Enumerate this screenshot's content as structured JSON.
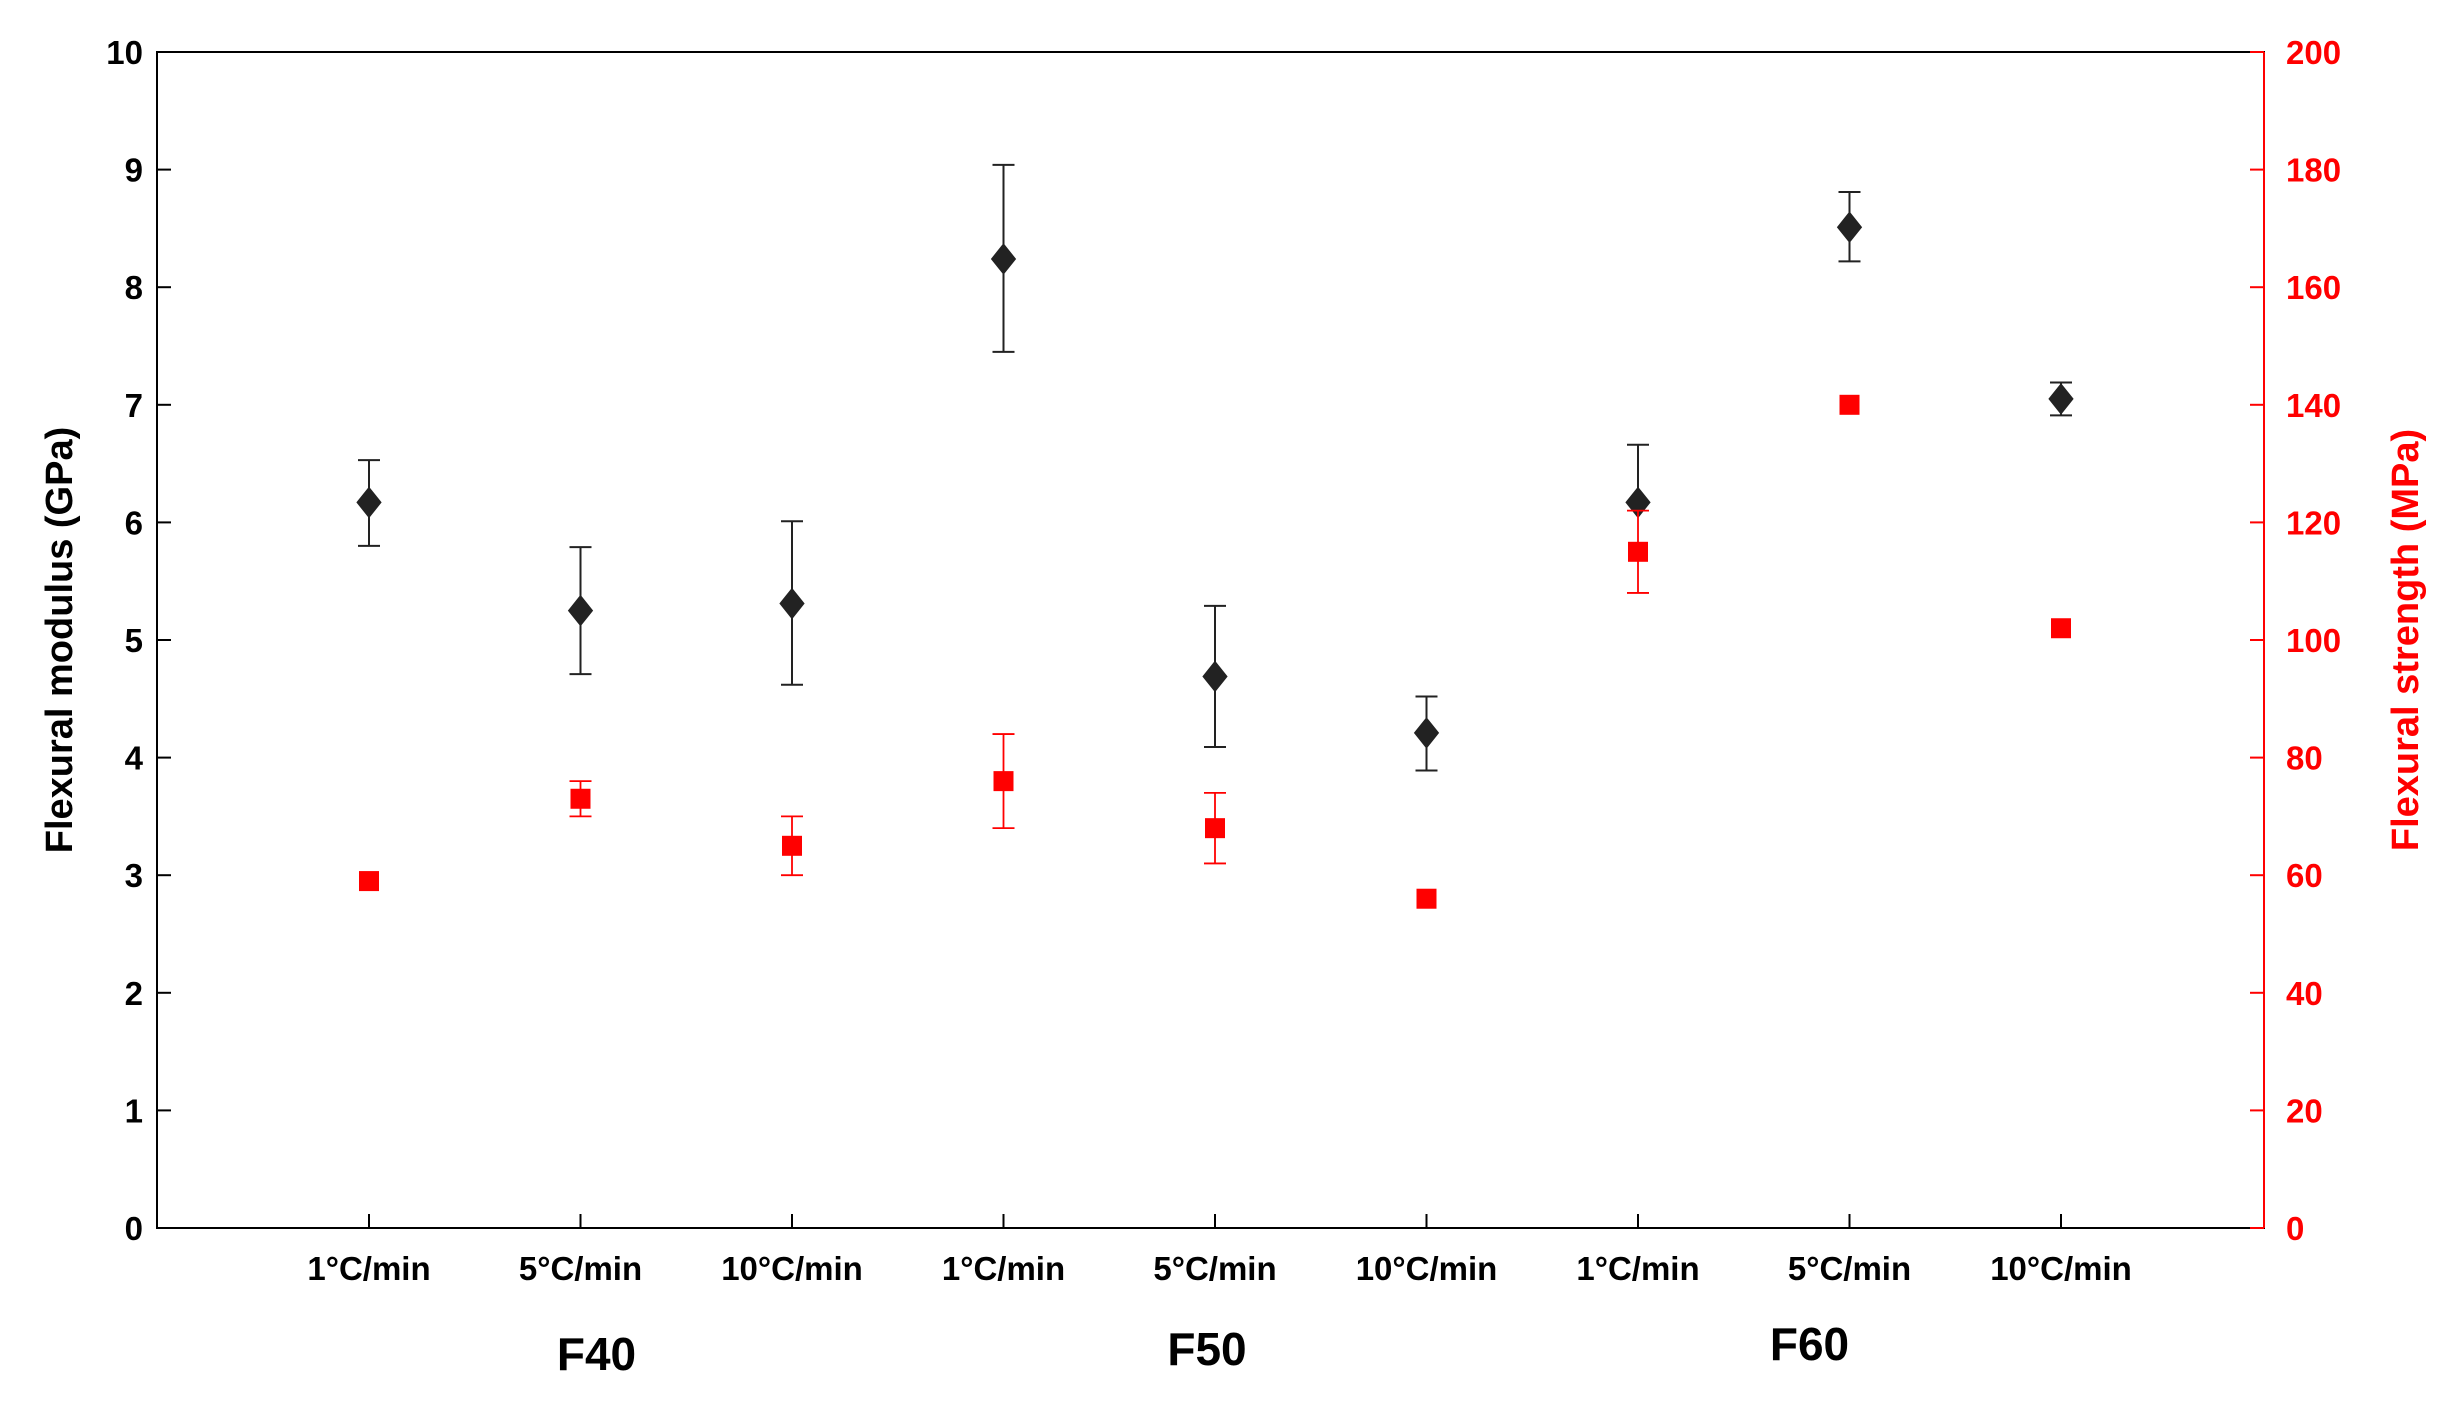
{
  "chart_data": {
    "type": "scatter",
    "categories": [
      "1°C/min",
      "5°C/min",
      "10°C/min",
      "1°C/min",
      "5°C/min",
      "10°C/min",
      "1°C/min",
      "5°C/min",
      "10°C/min"
    ],
    "groups": [
      {
        "label": "F40",
        "span": [
          0,
          2
        ]
      },
      {
        "label": "F50",
        "span": [
          3,
          5
        ]
      },
      {
        "label": "F60",
        "span": [
          6,
          8
        ]
      }
    ],
    "y_left": {
      "label": "Flexural modulus (GPa)",
      "range": [
        0,
        10
      ],
      "ticks": [
        0,
        1,
        2,
        3,
        4,
        5,
        6,
        7,
        8,
        9,
        10
      ],
      "color": "#000000"
    },
    "y_right": {
      "label": "Flexural strength (MPa)",
      "range": [
        0,
        200
      ],
      "ticks": [
        0,
        20,
        40,
        60,
        80,
        100,
        120,
        140,
        160,
        180,
        200
      ],
      "color": "#ff0000"
    },
    "series": [
      {
        "axis": "left",
        "marker": "diamond",
        "color": "#222222",
        "values": [
          6.17,
          5.25,
          5.31,
          8.24,
          4.69,
          4.21,
          6.17,
          8.51,
          7.05
        ],
        "err_low": [
          5.8,
          4.71,
          4.62,
          7.45,
          4.09,
          3.89,
          6.17,
          8.22,
          6.91
        ],
        "err_high": [
          6.53,
          5.79,
          6.01,
          9.04,
          5.29,
          4.52,
          6.66,
          8.81,
          7.19
        ]
      },
      {
        "axis": "right",
        "marker": "square",
        "color": "#ff0000",
        "values": [
          59,
          73,
          65,
          76,
          68,
          56,
          115,
          140,
          102
        ],
        "err_low": [
          59,
          70,
          60,
          68,
          62,
          56,
          108,
          140,
          102
        ],
        "err_high": [
          59,
          76,
          70,
          84,
          74,
          56,
          122,
          140,
          102
        ]
      }
    ]
  }
}
